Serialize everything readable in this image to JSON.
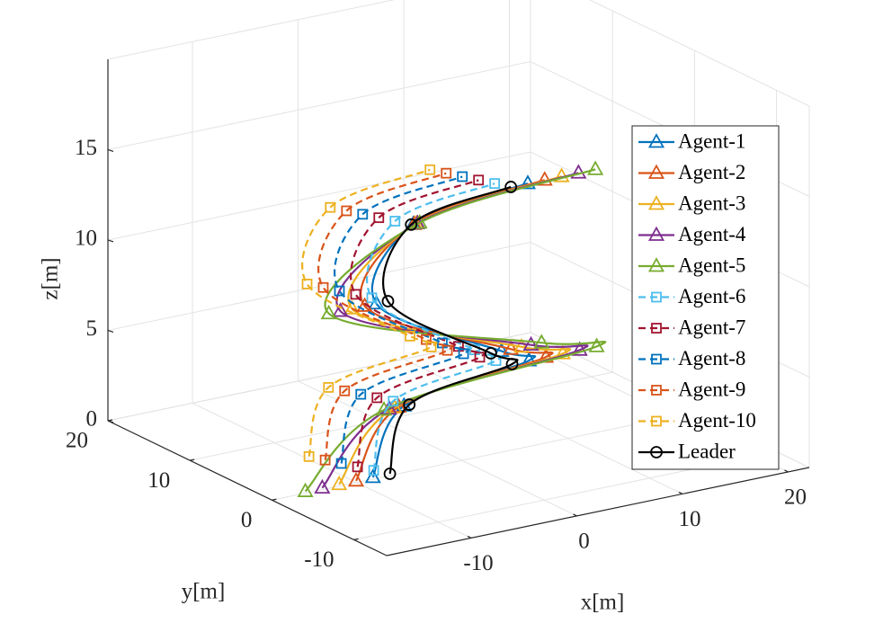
{
  "chart_data": {
    "type": "line3d",
    "xlabel": "x[m]",
    "ylabel": "y[m]",
    "zlabel": "z[m]",
    "xlim": [
      -18,
      22
    ],
    "ylim": [
      -14,
      20
    ],
    "zlim": [
      0,
      20
    ],
    "xticks": [
      -10,
      0,
      10,
      20
    ],
    "yticks": [
      -10,
      0,
      10,
      20
    ],
    "zticks": [
      0,
      5,
      10,
      15
    ],
    "grid": true,
    "legend": "east",
    "series": [
      {
        "name": "Agent-1",
        "color": "#0072BD",
        "style": "solid",
        "marker": "triangle",
        "x": [
          -8.2,
          -1.3,
          8.2,
          5.2,
          -4.0,
          1.9,
          10.1
        ],
        "y": [
          0.3,
          5.4,
          2.4,
          1.9,
          5.3,
          8.4,
          5.0
        ],
        "z": [
          0,
          2,
          4,
          5,
          8,
          11,
          13
        ]
      },
      {
        "name": "Agent-2",
        "color": "#D95319",
        "style": "solid",
        "marker": "triangle",
        "x": [
          -9.8,
          -1.8,
          9.8,
          6.1,
          -5.1,
          2.0,
          11.7
        ],
        "y": [
          0.3,
          5.4,
          2.4,
          1.9,
          5.3,
          8.4,
          5.0
        ],
        "z": [
          0,
          2,
          4,
          5,
          8,
          11,
          13
        ]
      },
      {
        "name": "Agent-3",
        "color": "#EDB120",
        "style": "solid",
        "marker": "triangle",
        "x": [
          -11.4,
          -2.2,
          11.4,
          7.1,
          -6.3,
          2.2,
          13.3
        ],
        "y": [
          0.3,
          5.4,
          2.4,
          1.9,
          5.3,
          8.4,
          5.0
        ],
        "z": [
          0,
          2,
          4,
          5,
          8,
          11,
          13
        ]
      },
      {
        "name": "Agent-4",
        "color": "#7E2F8E",
        "style": "solid",
        "marker": "triangle",
        "x": [
          -13,
          -2.7,
          13,
          8.0,
          -7.4,
          2.3,
          14.9
        ],
        "y": [
          0.3,
          5.4,
          2.4,
          1.9,
          5.3,
          8.4,
          5.0
        ],
        "z": [
          0,
          2,
          4,
          5,
          8,
          11,
          13
        ]
      },
      {
        "name": "Agent-5",
        "color": "#77AC30",
        "style": "solid",
        "marker": "triangle",
        "x": [
          -14.6,
          -3.2,
          14.6,
          9.0,
          -8.5,
          2.5,
          16.5
        ],
        "y": [
          0.3,
          5.4,
          2.4,
          1.9,
          5.3,
          8.4,
          5.0
        ],
        "z": [
          0,
          2,
          4,
          5,
          8,
          11,
          13
        ]
      },
      {
        "name": "Agent-6",
        "color": "#4DBEEE",
        "style": "dashed",
        "marker": "square",
        "x": [
          -7.2,
          -1.4,
          6.0,
          3.6,
          -3.5,
          1.1,
          7.9
        ],
        "y": [
          1.5,
          6.6,
          3.6,
          3.1,
          6.5,
          9.6,
          6.2
        ],
        "z": [
          0,
          2,
          4,
          5,
          8,
          11,
          13
        ]
      },
      {
        "name": "Agent-7",
        "color": "#A2142F",
        "style": "dashed",
        "marker": "square",
        "x": [
          -7.8,
          -2.0,
          5.4,
          3.0,
          -4.1,
          0.5,
          7.3
        ],
        "y": [
          2.7,
          7.8,
          4.8,
          4.3,
          7.7,
          10.8,
          7.4
        ],
        "z": [
          0,
          2,
          4,
          5,
          8,
          11,
          13
        ]
      },
      {
        "name": "Agent-8",
        "color": "#0072BD",
        "style": "dashed",
        "marker": "square",
        "x": [
          -8.4,
          -2.6,
          4.8,
          2.4,
          -4.7,
          -0.1,
          6.7
        ],
        "y": [
          3.9,
          9.0,
          6.0,
          5.5,
          8.9,
          12.0,
          8.6
        ],
        "z": [
          0,
          2,
          4,
          5,
          8,
          11,
          13
        ]
      },
      {
        "name": "Agent-9",
        "color": "#D95319",
        "style": "dashed",
        "marker": "square",
        "x": [
          -9.0,
          -3.2,
          4.2,
          1.8,
          -5.3,
          -0.7,
          6.1
        ],
        "y": [
          5.1,
          10.2,
          7.2,
          6.7,
          10.1,
          13.2,
          9.8
        ],
        "z": [
          0,
          2,
          4,
          5,
          8,
          11,
          13
        ]
      },
      {
        "name": "Agent-10",
        "color": "#EDB120",
        "style": "dashed",
        "marker": "square",
        "x": [
          -9.6,
          -3.8,
          3.6,
          1.2,
          -5.9,
          -1.3,
          5.5
        ],
        "y": [
          6.3,
          11.4,
          8.4,
          7.9,
          11.3,
          14.4,
          11.0
        ],
        "z": [
          0,
          2,
          4,
          5,
          8,
          11,
          13
        ]
      },
      {
        "name": "Leader",
        "color": "#000000",
        "style": "solid",
        "marker": "circle",
        "x": [
          -6.6,
          -0.8,
          6.6,
          4.2,
          -2.9,
          1.7,
          8.5
        ],
        "y": [
          0.3,
          5.4,
          2.4,
          1.9,
          5.3,
          8.4,
          5.0
        ],
        "z": [
          0,
          2,
          4,
          5,
          8,
          11,
          13
        ]
      }
    ]
  }
}
